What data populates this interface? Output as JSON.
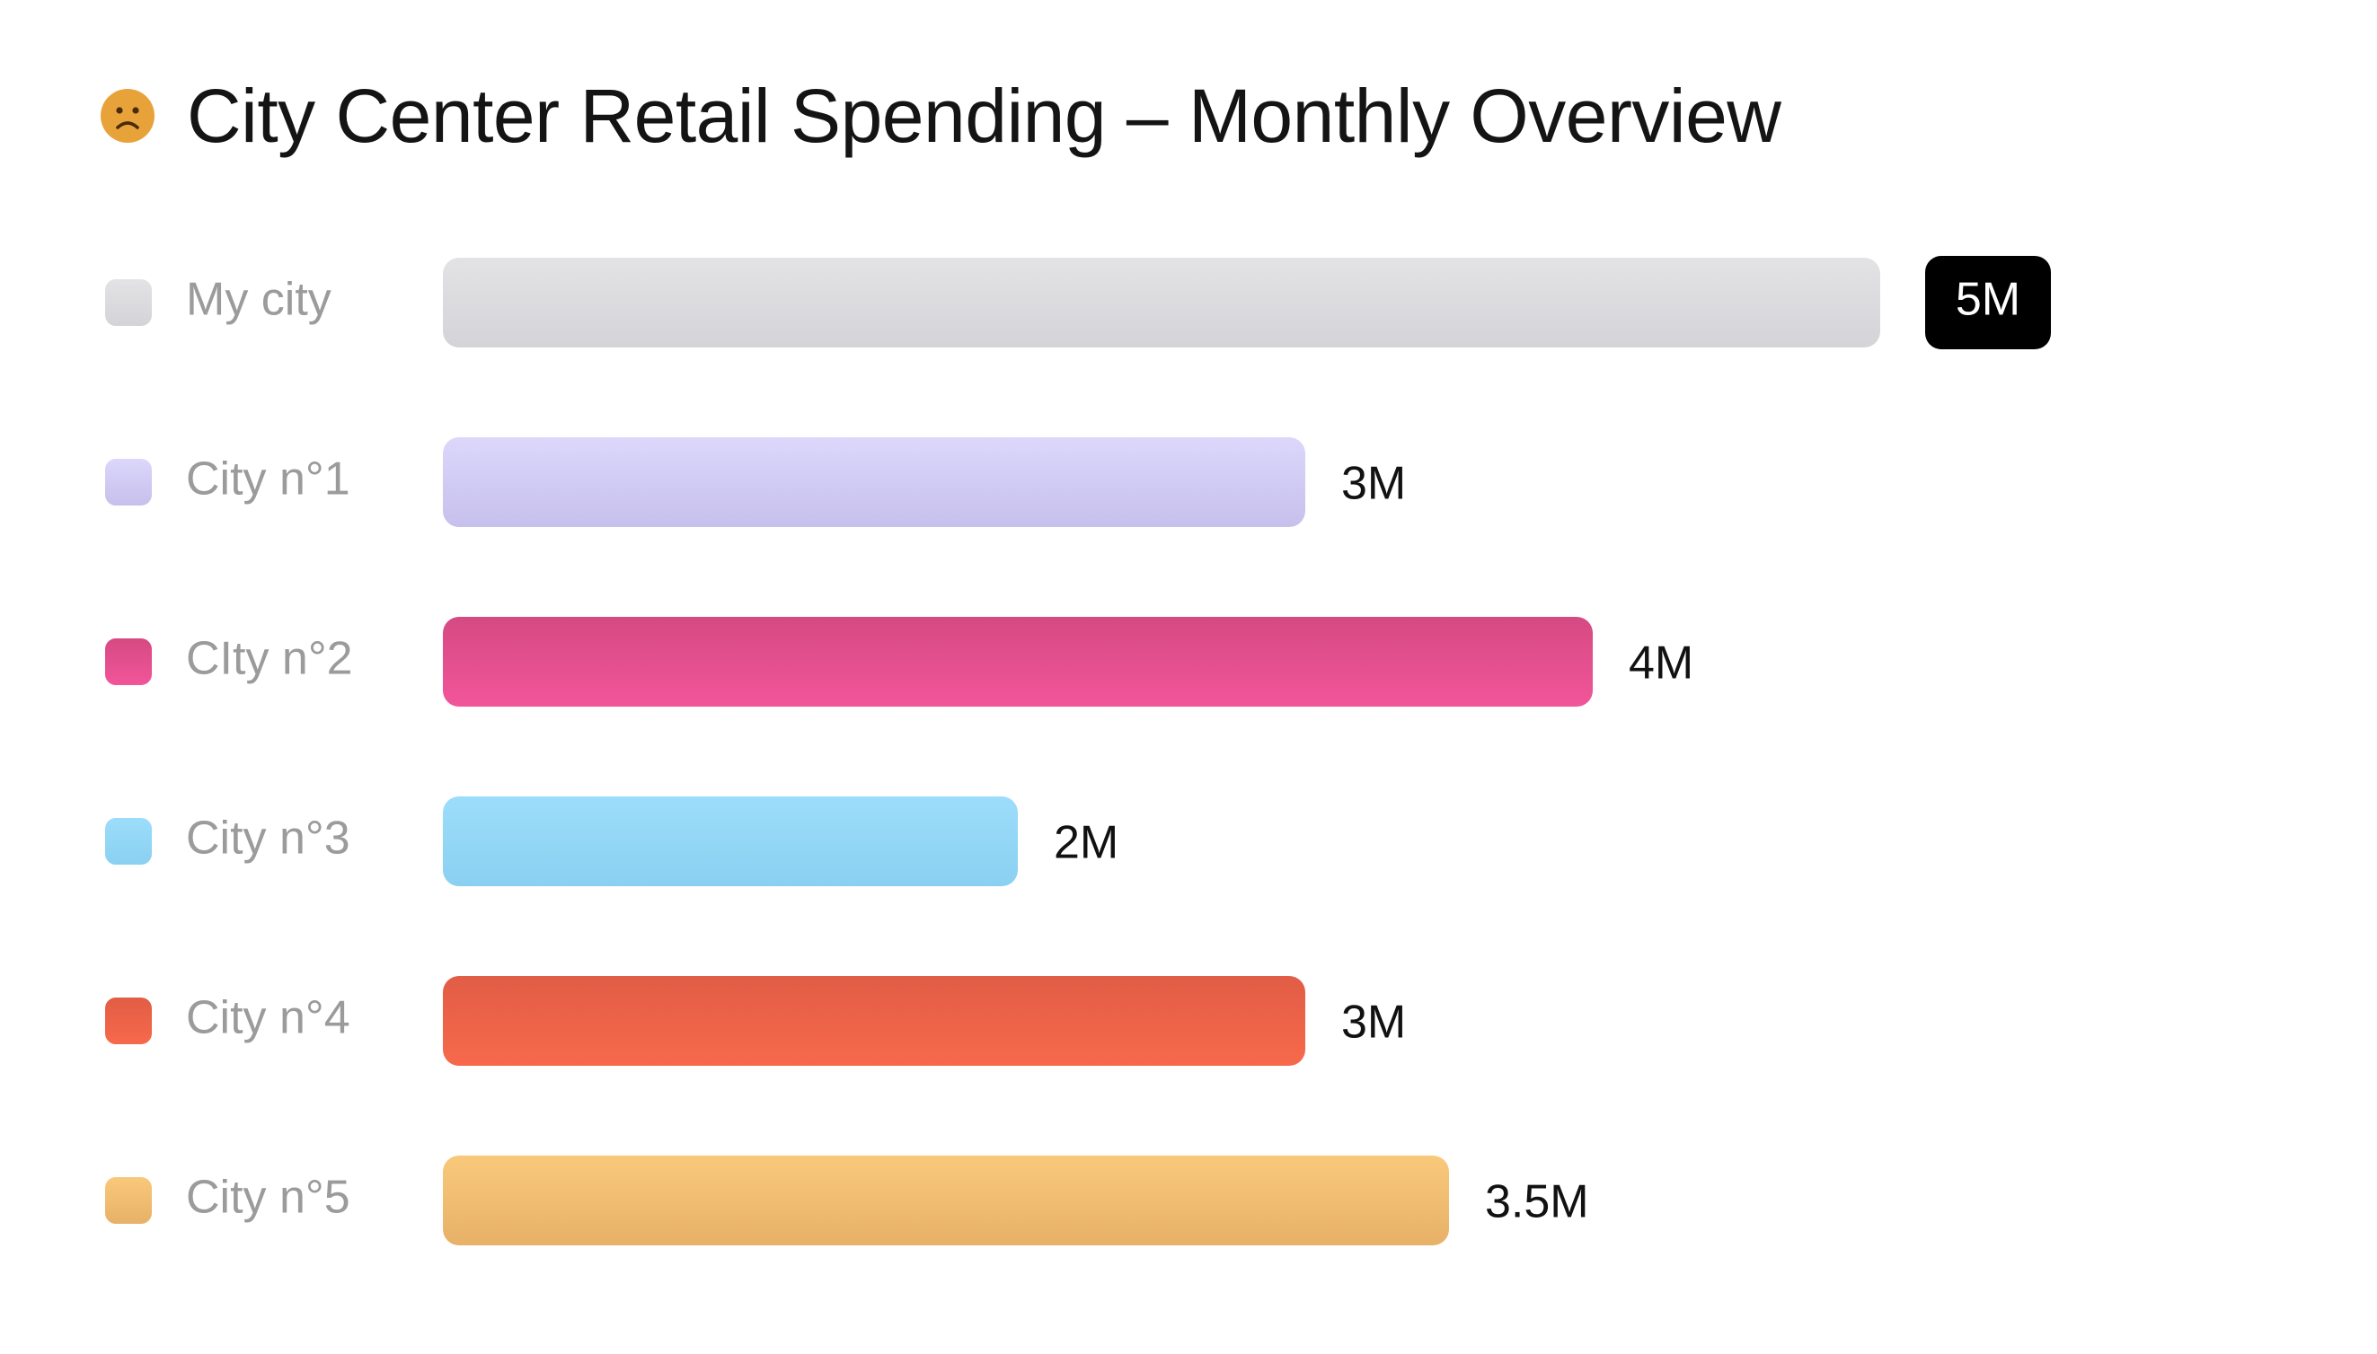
{
  "header": {
    "title": "City Center Retail Spending – Monthly Overview",
    "icon": "sad-face-icon",
    "icon_color": "#E8A23A"
  },
  "chart_data": {
    "type": "bar",
    "orientation": "horizontal",
    "title": "City Center Retail Spending – Monthly Overview",
    "categories": [
      "My city",
      "City n°1",
      "CIty n°2",
      "City n°3",
      "City n°4",
      "City n°5"
    ],
    "values": [
      5,
      3,
      4,
      2,
      3,
      3.5
    ],
    "value_labels": [
      "5M",
      "3M",
      "4M",
      "2M",
      "3M",
      "3.5M"
    ],
    "unit": "M",
    "xlim": [
      0,
      5
    ],
    "highlight_index": 0,
    "colors": [
      [
        "#E3E3E5",
        "#D4D4D8"
      ],
      [
        "#DCD7FB",
        "#C6C0EC"
      ],
      [
        "#D54A82",
        "#F2559A"
      ],
      [
        "#9CDDFA",
        "#8AD0F1"
      ],
      [
        "#E15D45",
        "#F7694C"
      ],
      [
        "#F9C97B",
        "#E7B168"
      ]
    ],
    "highlight_badge_color": "#000000",
    "grid": false,
    "legend": "left"
  }
}
